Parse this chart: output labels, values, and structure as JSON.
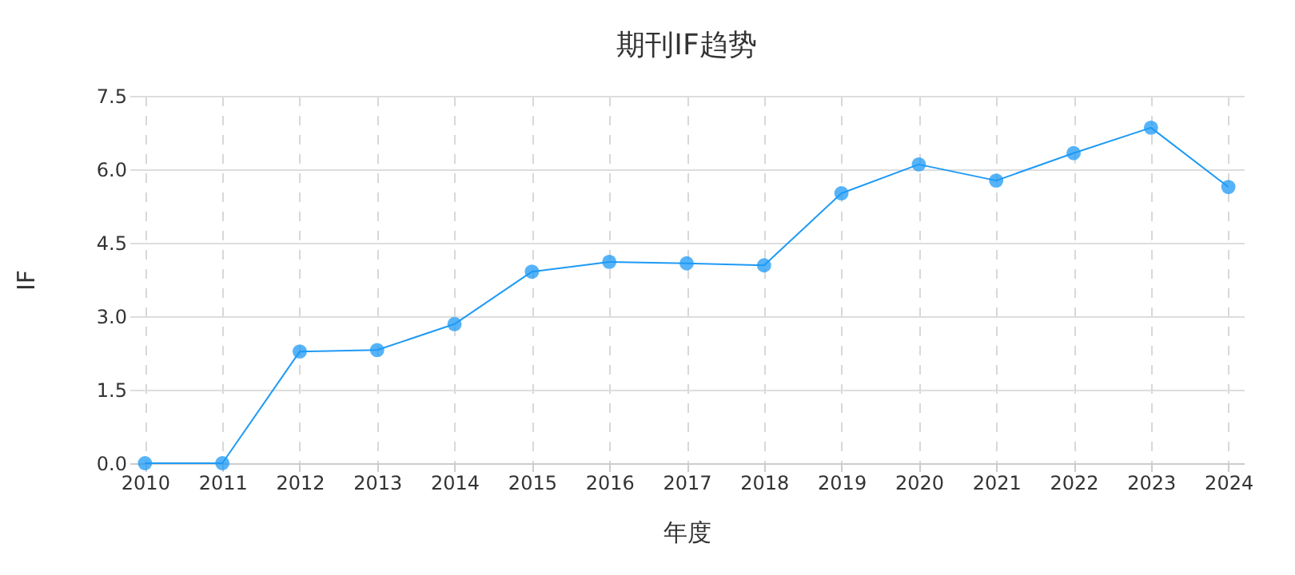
{
  "chart_data": {
    "type": "line",
    "title": "期刊IF趋势",
    "xlabel": "年度",
    "ylabel": "IF",
    "categories": [
      "2010",
      "2011",
      "2012",
      "2013",
      "2014",
      "2015",
      "2016",
      "2017",
      "2018",
      "2019",
      "2020",
      "2021",
      "2022",
      "2023",
      "2024"
    ],
    "series": [
      {
        "color": "#1e9af5",
        "values": [
          0,
          0,
          2.28,
          2.31,
          2.84,
          3.91,
          4.11,
          4.08,
          4.04,
          5.51,
          6.1,
          5.77,
          6.33,
          6.85,
          5.64
        ]
      }
    ],
    "ylim": [
      0,
      7.5
    ],
    "yticks": [
      {
        "value": 0,
        "label": "0.0"
      },
      {
        "value": 1.5,
        "label": "1.5"
      },
      {
        "value": 3,
        "label": "3.0"
      },
      {
        "value": 4.5,
        "label": "4.5"
      },
      {
        "value": 6,
        "label": "6.0"
      },
      {
        "value": 7.5,
        "label": "7.5"
      }
    ],
    "grid": true,
    "marker": "circle",
    "line_style": "solid"
  }
}
